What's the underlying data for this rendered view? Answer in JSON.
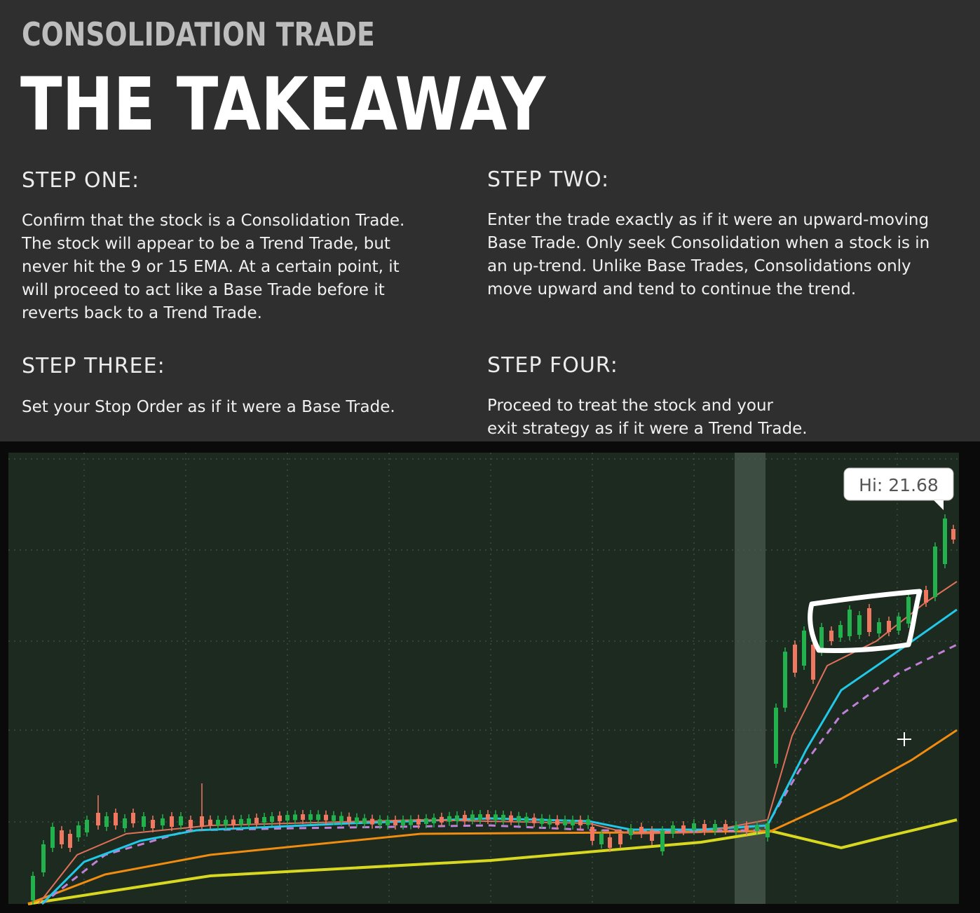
{
  "header": {
    "subtitle": "CONSOLIDATION TRADE",
    "title": "THE TAKEAWAY"
  },
  "steps": [
    {
      "heading": "STEP ONE:",
      "lines": [
        "Confirm that the stock is a Consolidation Trade.",
        "The stock will appear to be a Trend Trade, but",
        "never hit the 9 or 15 EMA. At a certain point, it",
        "will proceed to act like a Base Trade before it",
        "reverts back to a Trend Trade."
      ]
    },
    {
      "heading": "STEP TWO:",
      "lines": [
        "Enter the trade exactly as if it were an upward-moving",
        "Base Trade. Only seek Consolidation when a stock is in",
        "an up-trend. Unlike Base Trades, Consolidations only",
        "move upward and tend to continue the trend."
      ]
    },
    {
      "heading": "STEP THREE:",
      "lines": [
        "Set your Stop Order as if it were a Base Trade."
      ]
    },
    {
      "heading": "STEP FOUR:",
      "lines": [
        "Proceed to treat the stock and your",
        "exit strategy as if it were a Trend Trade."
      ]
    }
  ],
  "chart_data": {
    "type": "candlestick",
    "annotation": "Hi: 21.68",
    "colors": {
      "background": "#1c2a1f",
      "up_candle": "#22b14c",
      "down_candle": "#f07860",
      "ema_fast": "#e0705a",
      "ema_mid": "#22c8e8",
      "ema_dashed": "#c080d8",
      "ema_slow_orange": "#f08c10",
      "ema_slowest_yellow": "#d8d820",
      "highlight_box": "#ffffff"
    },
    "grid": true,
    "legend": "none",
    "notes_box": "consolidation-region"
  }
}
